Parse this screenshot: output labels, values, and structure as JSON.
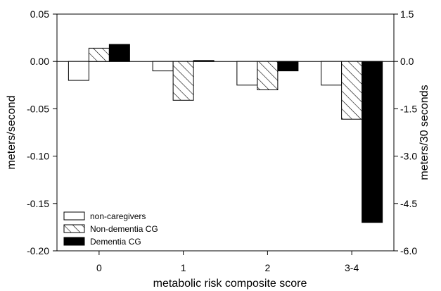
{
  "chart_data": {
    "type": "bar",
    "xlabel": "metabolic risk composite score",
    "ylabel": "meters/second",
    "y2label": "meters/30 seconds",
    "categories": [
      "0",
      "1",
      "2",
      "3-4"
    ],
    "ylim": [
      -0.2,
      0.05
    ],
    "yticks": [
      "0.05",
      "0.00",
      "-0.05",
      "-0.10",
      "-0.15",
      "-0.20"
    ],
    "y2lim": [
      -6.0,
      1.5
    ],
    "y2ticks": [
      "1.5",
      "0.0",
      "-1.5",
      "-3.0",
      "-4.5",
      "-6.0"
    ],
    "legend_position": "bottom-left",
    "grid": false,
    "series": [
      {
        "name": "non-caregivers",
        "fill": "white",
        "values": [
          -0.02,
          -0.01,
          -0.025,
          -0.025
        ]
      },
      {
        "name": "Non-dementia CG",
        "fill": "hatch",
        "values": [
          0.014,
          -0.041,
          -0.03,
          -0.061
        ]
      },
      {
        "name": "Dementia CG",
        "fill": "black",
        "values": [
          0.018,
          0.001,
          -0.01,
          -0.17
        ]
      }
    ]
  }
}
